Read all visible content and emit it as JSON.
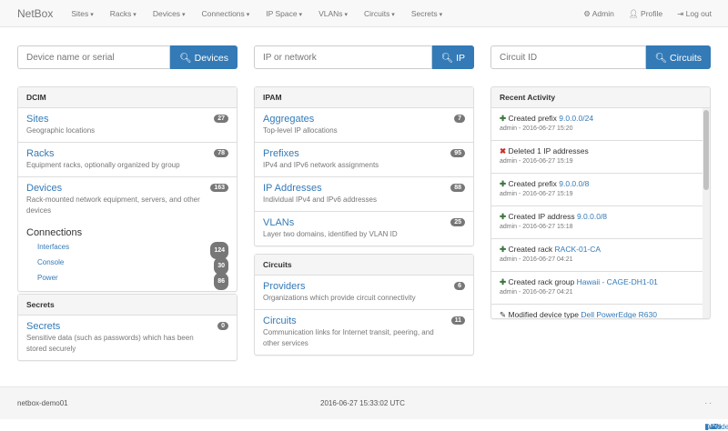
{
  "nav": {
    "brand": "NetBox",
    "menus": [
      "Sites",
      "Racks",
      "Devices",
      "Connections",
      "IP Space",
      "VLANs",
      "Circuits",
      "Secrets"
    ],
    "admin": "Admin",
    "profile": "Profile",
    "logout": "Log out"
  },
  "search": {
    "device": {
      "placeholder": "Device name or serial",
      "button": "Devices"
    },
    "ip": {
      "placeholder": "IP or network",
      "button": "IP"
    },
    "circuit": {
      "placeholder": "Circuit ID",
      "button": "Circuits"
    }
  },
  "dcim": {
    "title": "DCIM",
    "items": [
      {
        "label": "Sites",
        "desc": "Geographic locations",
        "count": "27"
      },
      {
        "label": "Racks",
        "desc": "Equipment racks, optionally organized by group",
        "count": "78"
      },
      {
        "label": "Devices",
        "desc": "Rack-mounted network equipment, servers, and other devices",
        "count": "163"
      }
    ],
    "connections": {
      "label": "Connections",
      "items": [
        {
          "label": "Interfaces",
          "count": "124"
        },
        {
          "label": "Console",
          "count": "30"
        },
        {
          "label": "Power",
          "count": "86"
        }
      ]
    }
  },
  "secrets": {
    "title": "Secrets",
    "items": [
      {
        "label": "Secrets",
        "desc": "Sensitive data (such as passwords) which has been stored securely",
        "count": "0"
      }
    ]
  },
  "ipam": {
    "title": "IPAM",
    "items": [
      {
        "label": "Aggregates",
        "desc": "Top-level IP allocations",
        "count": "7"
      },
      {
        "label": "Prefixes",
        "desc": "IPv4 and IPv6 network assignments",
        "count": "95"
      },
      {
        "label": "IP Addresses",
        "desc": "Individual IPv4 and IPv6 addresses",
        "count": "88"
      },
      {
        "label": "VLANs",
        "desc": "Layer two domains, identified by VLAN ID",
        "count": "25"
      }
    ]
  },
  "circuits": {
    "title": "Circuits",
    "items": [
      {
        "label": "Providers",
        "desc": "Organizations which provide circuit connectivity",
        "count": "6"
      },
      {
        "label": "Circuits",
        "desc": "Communication links for Internet transit, peering, and other services",
        "count": "11"
      }
    ]
  },
  "activity": {
    "title": "Recent Activity",
    "items": [
      {
        "icon": "plus",
        "text": "Created prefix",
        "link": "9.0.0.0/24",
        "meta": "admin - 2016-06-27 15:20"
      },
      {
        "icon": "x",
        "text": "Deleted 1 IP addresses",
        "link": "",
        "meta": "admin - 2016-06-27 15:19"
      },
      {
        "icon": "plus",
        "text": "Created prefix",
        "link": "9.0.0.0/8",
        "meta": "admin - 2016-06-27 15:19"
      },
      {
        "icon": "plus",
        "text": "Created IP address",
        "link": "9.0.0.0/8",
        "meta": "admin - 2016-06-27 15:18"
      },
      {
        "icon": "plus",
        "text": "Created rack",
        "link": "RACK-01-CA",
        "meta": "admin - 2016-06-27 04:21"
      },
      {
        "icon": "plus",
        "text": "Created rack group",
        "link": "Hawaii - CAGE-DH1-01",
        "meta": "admin - 2016-06-27 04:21"
      },
      {
        "icon": "pencil",
        "text": "Modified device type",
        "link": "Dell PowerEdge R630",
        "meta": ""
      }
    ]
  },
  "footer": {
    "host": "netbox-demo01",
    "time": "2016-06-27 15:33:02 UTC",
    "docs": "Docs",
    "api": "API",
    "code": "Code"
  }
}
